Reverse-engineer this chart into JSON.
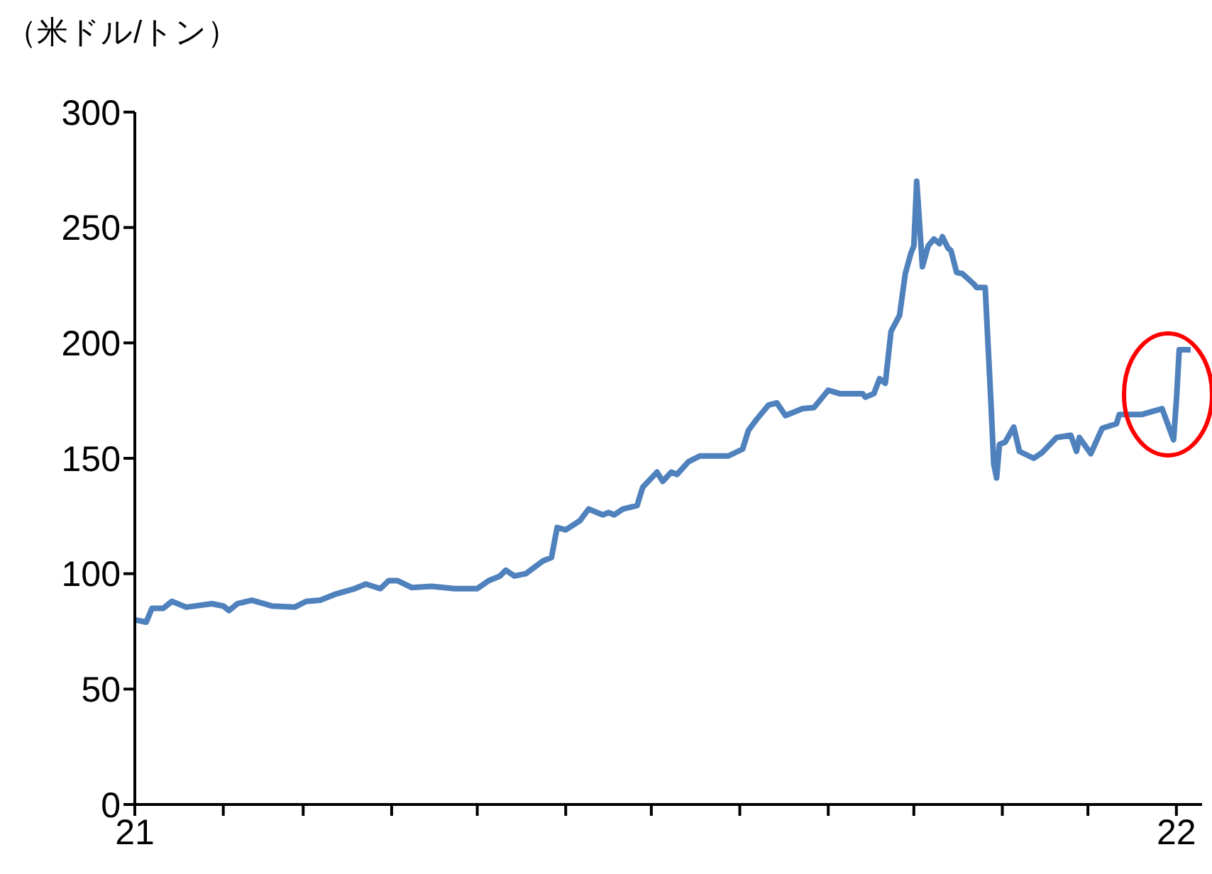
{
  "chart_data": {
    "type": "line",
    "ylabel": "（米ドル/トン）",
    "x": [
      "2021-01-01",
      "2021-01-05",
      "2021-01-07",
      "2021-01-11",
      "2021-01-14",
      "2021-01-19",
      "2021-01-28",
      "2021-02-01",
      "2021-02-03",
      "2021-02-06",
      "2021-02-11",
      "2021-02-18",
      "2021-02-26",
      "2021-03-02",
      "2021-03-07",
      "2021-03-12",
      "2021-03-19",
      "2021-03-23",
      "2021-03-28",
      "2021-03-31",
      "2021-04-03",
      "2021-04-08",
      "2021-04-15",
      "2021-04-23",
      "2021-05-01",
      "2021-05-05",
      "2021-05-09",
      "2021-05-11",
      "2021-05-14",
      "2021-05-18",
      "2021-05-24",
      "2021-05-27",
      "2021-05-29",
      "2021-06-01",
      "2021-06-06",
      "2021-06-09",
      "2021-06-14",
      "2021-06-16",
      "2021-06-18",
      "2021-06-21",
      "2021-06-26",
      "2021-06-28",
      "2021-07-03",
      "2021-07-05",
      "2021-07-08",
      "2021-07-10",
      "2021-07-14",
      "2021-07-18",
      "2021-07-28",
      "2021-08-02",
      "2021-08-04",
      "2021-08-07",
      "2021-08-11",
      "2021-08-14",
      "2021-08-17",
      "2021-08-23",
      "2021-08-27",
      "2021-09-01",
      "2021-09-05",
      "2021-09-13",
      "2021-09-14",
      "2021-09-17",
      "2021-09-19",
      "2021-09-21",
      "2021-09-23",
      "2021-09-26",
      "2021-09-28",
      "2021-09-30",
      "2021-10-01",
      "2021-10-02",
      "2021-10-04",
      "2021-10-06",
      "2021-10-08",
      "2021-10-10",
      "2021-10-11",
      "2021-10-13",
      "2021-10-14",
      "2021-10-16",
      "2021-10-18",
      "2021-10-22",
      "2021-10-23",
      "2021-10-26",
      "2021-10-28",
      "2021-10-29",
      "2021-10-30",
      "2021-10-31",
      "2021-11-02",
      "2021-11-05",
      "2021-11-07",
      "2021-11-12",
      "2021-11-15",
      "2021-11-20",
      "2021-11-25",
      "2021-11-27",
      "2021-11-28",
      "2021-12-02",
      "2021-12-06",
      "2021-12-11",
      "2021-12-12",
      "2021-12-20",
      "2021-12-27",
      "2021-12-31",
      "2022-01-01",
      "2022-01-02",
      "2022-01-06"
    ],
    "series": [
      {
        "color": "#4f81bd",
        "values": [
          80,
          79,
          85,
          85,
          88,
          85.5,
          87,
          86,
          84,
          87,
          88.5,
          86,
          85.5,
          88,
          88.5,
          91,
          93.5,
          95.5,
          93.5,
          97,
          97,
          94,
          94.5,
          93.5,
          93.5,
          97,
          99,
          101.5,
          99,
          100,
          105.5,
          107,
          120,
          119,
          123,
          128,
          125.5,
          126.5,
          125.5,
          128,
          129.5,
          137.5,
          144,
          140,
          144,
          143,
          148.5,
          151,
          151,
          154,
          162,
          167,
          173,
          174,
          168.5,
          171.5,
          172,
          179.5,
          178,
          178,
          176.5,
          178,
          184.5,
          182.5,
          205,
          212,
          230,
          239,
          242,
          270,
          233,
          242,
          245,
          243,
          246,
          241,
          240,
          230.5,
          230,
          225.5,
          224,
          224,
          174.5,
          147.5,
          141.5,
          156,
          157,
          163.5,
          153,
          150,
          152.5,
          159,
          160,
          153,
          159,
          152,
          163,
          165,
          169,
          169,
          171.5,
          158,
          175,
          197,
          197
        ]
      }
    ],
    "xlim": [
      "2021-01-01",
      "2022-01-10"
    ],
    "xticks": [
      {
        "value": "2021-01-01",
        "label": "21"
      },
      {
        "value": "2021-02-01",
        "label": null
      },
      {
        "value": "2021-03-01",
        "label": null
      },
      {
        "value": "2021-04-01",
        "label": null
      },
      {
        "value": "2021-05-01",
        "label": null
      },
      {
        "value": "2021-06-01",
        "label": null
      },
      {
        "value": "2021-07-01",
        "label": null
      },
      {
        "value": "2021-08-01",
        "label": null
      },
      {
        "value": "2021-09-01",
        "label": null
      },
      {
        "value": "2021-10-01",
        "label": null
      },
      {
        "value": "2021-11-01",
        "label": null
      },
      {
        "value": "2021-12-01",
        "label": null
      },
      {
        "value": "2022-01-01",
        "label": "22"
      }
    ],
    "ylim": [
      0,
      300
    ],
    "yticks": [
      0,
      50,
      100,
      150,
      200,
      250,
      300
    ],
    "grid": false,
    "legend": false,
    "marker": "none",
    "line_style": "solid"
  }
}
